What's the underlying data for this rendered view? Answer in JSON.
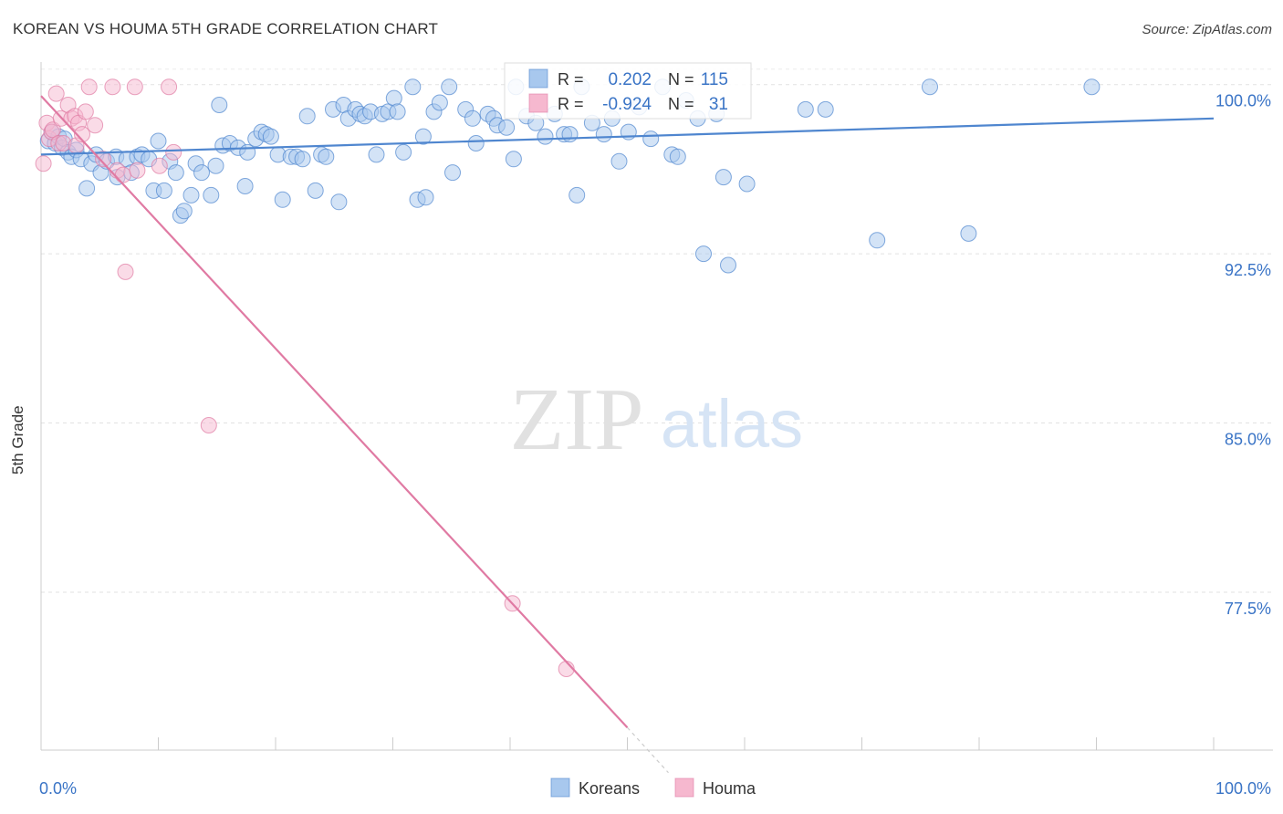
{
  "title": "KOREAN VS HOUMA 5TH GRADE CORRELATION CHART",
  "source": "Source: ZipAtlas.com",
  "watermark": {
    "zip": "ZIP",
    "atlas": "atlas"
  },
  "chart_data": {
    "type": "scatter",
    "title": "KOREAN VS HOUMA 5TH GRADE CORRELATION CHART",
    "xlabel": "",
    "ylabel": "5th Grade",
    "xlim": [
      0,
      100
    ],
    "ylim": [
      70.5,
      101
    ],
    "x_tick_labels": [
      "0.0%",
      "100.0%"
    ],
    "y_ticks": [
      77.5,
      85.0,
      92.5,
      100.0
    ],
    "y_tick_labels": [
      "77.5%",
      "85.0%",
      "92.5%",
      "100.0%"
    ],
    "grid": true,
    "legend_position": "bottom-center",
    "stats_box": [
      {
        "series": "Koreans",
        "r_label": "R =",
        "r_value": "0.202",
        "n_label": "N =",
        "n_value": "115"
      },
      {
        "series": "Houma",
        "r_label": "R =",
        "r_value": "-0.924",
        "n_label": "N =",
        "n_value": "31"
      }
    ],
    "series": [
      {
        "name": "Koreans",
        "color": "#4f86cf",
        "fill": "#a8c8ee",
        "trend": {
          "x": [
            0,
            100
          ],
          "y": [
            96.9,
            98.5
          ]
        },
        "points": [
          [
            0.6,
            97.5
          ],
          [
            0.9,
            97.9
          ],
          [
            1.2,
            97.4
          ],
          [
            1.5,
            97.7
          ],
          [
            1.8,
            97.2
          ],
          [
            2.0,
            97.6
          ],
          [
            2.3,
            97.0
          ],
          [
            2.6,
            96.8
          ],
          [
            3.0,
            97.1
          ],
          [
            3.4,
            96.7
          ],
          [
            3.9,
            95.4
          ],
          [
            4.3,
            96.5
          ],
          [
            4.7,
            96.9
          ],
          [
            5.1,
            96.1
          ],
          [
            5.6,
            96.6
          ],
          [
            6.4,
            96.8
          ],
          [
            6.5,
            95.9
          ],
          [
            7.3,
            96.7
          ],
          [
            7.7,
            96.1
          ],
          [
            8.2,
            96.8
          ],
          [
            8.6,
            96.9
          ],
          [
            9.2,
            96.7
          ],
          [
            9.6,
            95.3
          ],
          [
            10.0,
            97.5
          ],
          [
            10.5,
            95.3
          ],
          [
            11.0,
            96.6
          ],
          [
            11.5,
            96.1
          ],
          [
            11.9,
            94.2
          ],
          [
            12.2,
            94.4
          ],
          [
            12.8,
            95.1
          ],
          [
            13.2,
            96.5
          ],
          [
            13.7,
            96.1
          ],
          [
            14.5,
            95.1
          ],
          [
            14.9,
            96.4
          ],
          [
            15.2,
            99.1
          ],
          [
            15.5,
            97.3
          ],
          [
            16.1,
            97.4
          ],
          [
            16.8,
            97.2
          ],
          [
            17.4,
            95.5
          ],
          [
            17.6,
            97.0
          ],
          [
            18.3,
            97.6
          ],
          [
            18.8,
            97.9
          ],
          [
            19.2,
            97.8
          ],
          [
            19.6,
            97.7
          ],
          [
            20.2,
            96.9
          ],
          [
            20.6,
            94.9
          ],
          [
            21.3,
            96.8
          ],
          [
            21.8,
            96.8
          ],
          [
            22.3,
            96.7
          ],
          [
            22.7,
            98.6
          ],
          [
            23.4,
            95.3
          ],
          [
            23.9,
            96.9
          ],
          [
            24.3,
            96.8
          ],
          [
            24.9,
            98.9
          ],
          [
            25.4,
            94.8
          ],
          [
            25.8,
            99.1
          ],
          [
            26.2,
            98.5
          ],
          [
            26.8,
            98.9
          ],
          [
            27.2,
            98.7
          ],
          [
            27.6,
            98.6
          ],
          [
            28.1,
            98.8
          ],
          [
            28.6,
            96.9
          ],
          [
            29.1,
            98.7
          ],
          [
            29.6,
            98.8
          ],
          [
            30.1,
            99.4
          ],
          [
            30.4,
            98.8
          ],
          [
            30.9,
            97.0
          ],
          [
            31.7,
            99.9
          ],
          [
            32.1,
            94.9
          ],
          [
            32.6,
            97.7
          ],
          [
            32.8,
            95.0
          ],
          [
            33.5,
            98.8
          ],
          [
            34.0,
            99.2
          ],
          [
            34.8,
            99.9
          ],
          [
            35.1,
            96.1
          ],
          [
            36.2,
            98.9
          ],
          [
            36.8,
            98.5
          ],
          [
            37.1,
            97.4
          ],
          [
            38.1,
            98.7
          ],
          [
            38.6,
            98.5
          ],
          [
            38.9,
            98.2
          ],
          [
            39.7,
            98.1
          ],
          [
            40.3,
            96.7
          ],
          [
            40.5,
            99.9
          ],
          [
            41.4,
            98.6
          ],
          [
            42.2,
            98.3
          ],
          [
            43.0,
            97.7
          ],
          [
            43.8,
            98.7
          ],
          [
            44.6,
            97.8
          ],
          [
            45.1,
            97.8
          ],
          [
            45.7,
            95.1
          ],
          [
            46.1,
            99.9
          ],
          [
            47.0,
            98.3
          ],
          [
            48.0,
            97.8
          ],
          [
            48.7,
            98.5
          ],
          [
            49.3,
            96.6
          ],
          [
            50.1,
            97.9
          ],
          [
            51.0,
            99.0
          ],
          [
            52.0,
            97.6
          ],
          [
            53.0,
            99.9
          ],
          [
            53.8,
            96.9
          ],
          [
            54.3,
            96.8
          ],
          [
            55.0,
            99.3
          ],
          [
            56.0,
            98.5
          ],
          [
            56.5,
            92.5
          ],
          [
            57.6,
            98.7
          ],
          [
            58.2,
            95.9
          ],
          [
            58.6,
            92.0
          ],
          [
            60.2,
            95.6
          ],
          [
            65.2,
            98.9
          ],
          [
            66.9,
            98.9
          ],
          [
            71.3,
            93.1
          ],
          [
            75.8,
            99.9
          ],
          [
            79.1,
            93.4
          ],
          [
            89.6,
            99.9
          ]
        ]
      },
      {
        "name": "Houma",
        "color": "#e07aa3",
        "fill": "#f6b8cf",
        "trend": {
          "x": [
            0,
            50
          ],
          "y": [
            99.5,
            71.5
          ]
        },
        "trend_dashed": {
          "x": [
            50,
            53.5
          ],
          "y": [
            71.5,
            69.5
          ]
        },
        "points": [
          [
            0.2,
            96.5
          ],
          [
            0.5,
            98.3
          ],
          [
            0.7,
            97.6
          ],
          [
            0.9,
            97.9
          ],
          [
            1.0,
            98.0
          ],
          [
            1.3,
            99.6
          ],
          [
            1.5,
            97.4
          ],
          [
            1.7,
            98.5
          ],
          [
            1.9,
            97.4
          ],
          [
            2.3,
            99.1
          ],
          [
            2.6,
            98.5
          ],
          [
            2.9,
            98.6
          ],
          [
            3.0,
            97.3
          ],
          [
            3.2,
            98.3
          ],
          [
            3.5,
            97.8
          ],
          [
            3.8,
            98.8
          ],
          [
            4.1,
            99.9
          ],
          [
            4.6,
            98.2
          ],
          [
            5.3,
            96.7
          ],
          [
            6.1,
            99.9
          ],
          [
            6.5,
            96.2
          ],
          [
            7.0,
            96.0
          ],
          [
            7.2,
            91.7
          ],
          [
            8.0,
            99.9
          ],
          [
            8.2,
            96.2
          ],
          [
            10.1,
            96.4
          ],
          [
            10.9,
            99.9
          ],
          [
            11.3,
            97.0
          ],
          [
            14.3,
            84.9
          ],
          [
            40.2,
            77.0
          ],
          [
            44.8,
            74.1
          ]
        ]
      }
    ]
  }
}
